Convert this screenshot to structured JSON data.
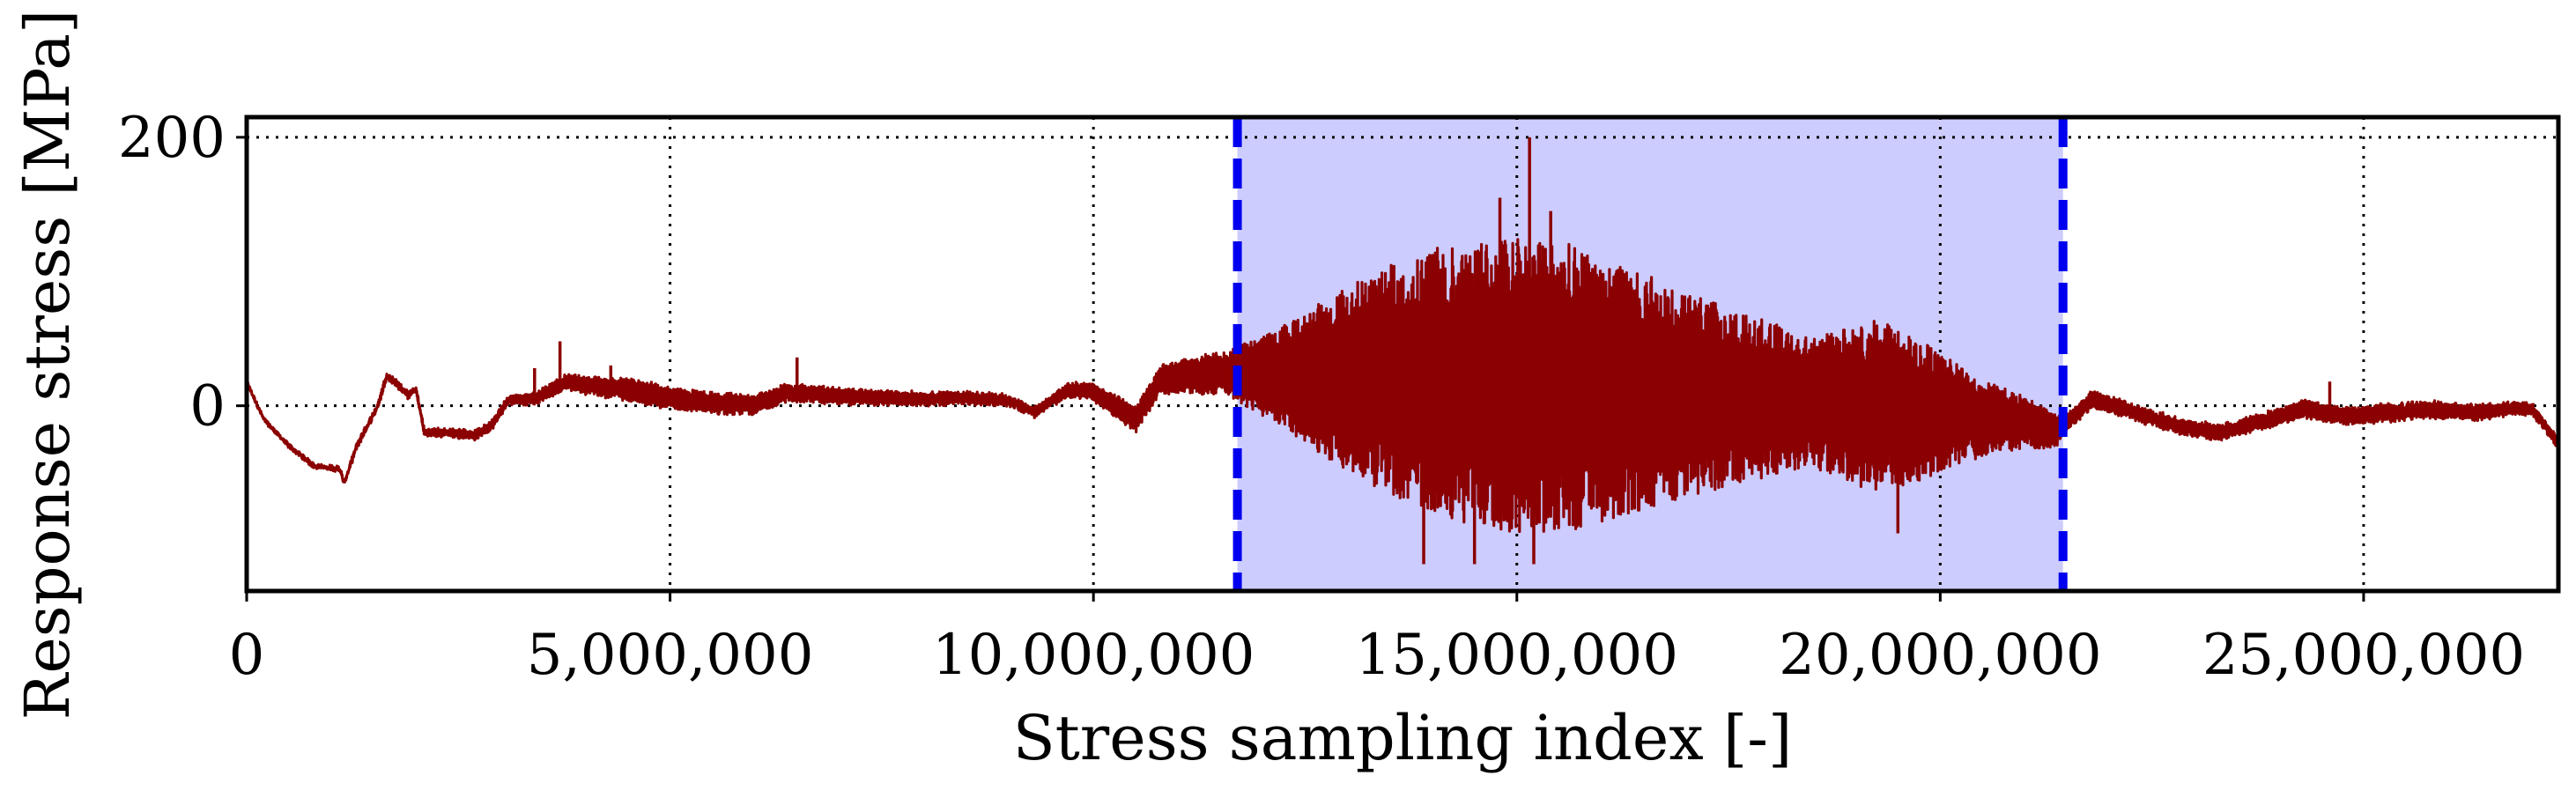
{
  "chart_data": {
    "type": "line",
    "title": "",
    "xlabel": "Stress sampling index [-]",
    "ylabel": "Response stress [MPa]",
    "xlim": [
      0,
      27300000
    ],
    "ylim": [
      -138,
      215
    ],
    "x_ticks": [
      {
        "value": 0,
        "label": "0"
      },
      {
        "value": 5000000,
        "label": "5,000,000"
      },
      {
        "value": 10000000,
        "label": "10,000,000"
      },
      {
        "value": 15000000,
        "label": "15,000,000"
      },
      {
        "value": 20000000,
        "label": "20,000,000"
      },
      {
        "value": 25000000,
        "label": "25,000,000"
      }
    ],
    "y_ticks": [
      {
        "value": 0,
        "label": "0"
      },
      {
        "value": 200,
        "label": "200"
      }
    ],
    "grid": true,
    "highlight_region": {
      "x_start": 11700000,
      "x_end": 21450000,
      "color": "#ccccff",
      "edge_color": "#0000ee"
    },
    "colors": {
      "series": "#8b0000"
    },
    "series": [
      {
        "name": "Response stress",
        "baseline": [
          [
            0,
            18
          ],
          [
            200000,
            -10
          ],
          [
            500000,
            -30
          ],
          [
            800000,
            -45
          ],
          [
            1100000,
            -47
          ],
          [
            1150000,
            -58
          ],
          [
            1300000,
            -30
          ],
          [
            1550000,
            0
          ],
          [
            1650000,
            22
          ],
          [
            1750000,
            18
          ],
          [
            1900000,
            8
          ],
          [
            2000000,
            12
          ],
          [
            2100000,
            -20
          ],
          [
            2400000,
            -20
          ],
          [
            2700000,
            -22
          ],
          [
            2900000,
            -14
          ],
          [
            3100000,
            5
          ],
          [
            3400000,
            5
          ],
          [
            3600000,
            12
          ],
          [
            3800000,
            18
          ],
          [
            4000000,
            15
          ],
          [
            4500000,
            12
          ],
          [
            5000000,
            6
          ],
          [
            5500000,
            2
          ],
          [
            6000000,
            1
          ],
          [
            6400000,
            10
          ],
          [
            7000000,
            7
          ],
          [
            7500000,
            6
          ],
          [
            8000000,
            5
          ],
          [
            8500000,
            6
          ],
          [
            9000000,
            4
          ],
          [
            9300000,
            -5
          ],
          [
            9700000,
            12
          ],
          [
            10000000,
            10
          ],
          [
            10200000,
            2
          ],
          [
            10500000,
            -10
          ],
          [
            10800000,
            20
          ],
          [
            11500000,
            25
          ],
          [
            12000000,
            22
          ],
          [
            13000000,
            20
          ],
          [
            14000000,
            18
          ],
          [
            15000000,
            15
          ],
          [
            16000000,
            12
          ],
          [
            17000000,
            8
          ],
          [
            18000000,
            5
          ],
          [
            19000000,
            0
          ],
          [
            20000000,
            -5
          ],
          [
            21000000,
            -12
          ],
          [
            21400000,
            -18
          ],
          [
            21800000,
            5
          ],
          [
            22300000,
            -5
          ],
          [
            22800000,
            -15
          ],
          [
            23300000,
            -20
          ],
          [
            23800000,
            -12
          ],
          [
            24300000,
            -2
          ],
          [
            24800000,
            -8
          ],
          [
            25300000,
            -5
          ],
          [
            25800000,
            -3
          ],
          [
            26300000,
            -5
          ],
          [
            26800000,
            -2
          ],
          [
            27000000,
            -3
          ],
          [
            27300000,
            -28
          ]
        ],
        "envelope": [
          [
            0,
            0
          ],
          [
            3200000,
            3
          ],
          [
            4500000,
            8
          ],
          [
            6500000,
            6
          ],
          [
            9400000,
            3
          ],
          [
            10700000,
            10
          ],
          [
            11500000,
            15
          ],
          [
            12200000,
            35
          ],
          [
            13000000,
            70
          ],
          [
            14000000,
            100
          ],
          [
            15000000,
            110
          ],
          [
            15500000,
            108
          ],
          [
            16500000,
            88
          ],
          [
            17500000,
            65
          ],
          [
            18500000,
            48
          ],
          [
            19300000,
            65
          ],
          [
            19800000,
            50
          ],
          [
            20500000,
            28
          ],
          [
            21300000,
            14
          ],
          [
            21500000,
            6
          ],
          [
            22500000,
            5
          ],
          [
            24500000,
            6
          ],
          [
            26000000,
            6
          ],
          [
            27300000,
            3
          ]
        ],
        "peaks": [
          [
            3400000,
            28
          ],
          [
            3700000,
            48
          ],
          [
            4300000,
            30
          ],
          [
            6500000,
            36
          ],
          [
            15150000,
            200
          ],
          [
            14800000,
            155
          ],
          [
            15400000,
            145
          ],
          [
            13900000,
            -118
          ],
          [
            14500000,
            -118
          ],
          [
            15200000,
            -118
          ],
          [
            19500000,
            -95
          ],
          [
            21200000,
            -30
          ],
          [
            24600000,
            18
          ],
          [
            27000000,
            2
          ]
        ]
      }
    ]
  }
}
